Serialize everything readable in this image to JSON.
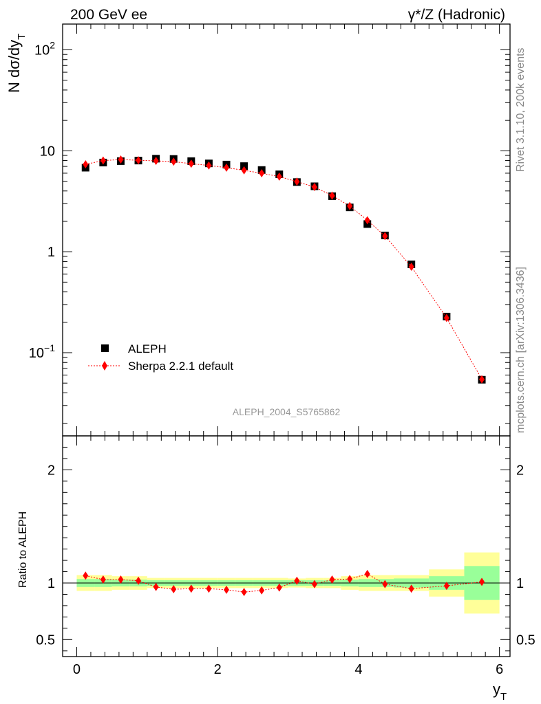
{
  "header": {
    "left": "200 GeV ee",
    "right": "γ*/Z (Hadronic)"
  },
  "side_labels": {
    "rivet": "Rivet 3.1.10,  200k events",
    "mcplots": "mcplots.cern.ch [arXiv:1306.3436]"
  },
  "watermark": "ALEPH_2004_S5765862",
  "colors": {
    "data": "#000000",
    "mc": "#ff0000",
    "band_inner": "#99ff99",
    "band_outer": "#ffff99"
  },
  "chart_data": [
    {
      "type": "scatter",
      "panel": "main",
      "ylabel": "N dσ/dy",
      "ylabel_subscript": "T",
      "yscale": "log",
      "ylim": [
        0.015,
        180
      ],
      "xlim": [
        -0.2,
        6.15
      ],
      "y_tick_labels": [
        {
          "value": 100,
          "base": "10",
          "exp": "2"
        },
        {
          "value": 10,
          "base": "10",
          "exp": ""
        },
        {
          "value": 1,
          "base": "1",
          "exp": ""
        },
        {
          "value": 0.1,
          "base": "10",
          "exp": "−1"
        }
      ],
      "legend": {
        "placement": "lower-left",
        "entries": [
          "ALEPH",
          "Sherpa 2.2.1 default"
        ]
      },
      "series": [
        {
          "name": "ALEPH",
          "marker": "square",
          "x": [
            0.125,
            0.375,
            0.625,
            0.875,
            1.125,
            1.375,
            1.625,
            1.875,
            2.125,
            2.375,
            2.625,
            2.875,
            3.125,
            3.375,
            3.625,
            3.875,
            4.125,
            4.375,
            4.75,
            5.25,
            5.75
          ],
          "values": [
            6.8,
            7.65,
            7.9,
            8.0,
            8.35,
            8.3,
            7.9,
            7.5,
            7.3,
            7.05,
            6.45,
            5.85,
            4.9,
            4.45,
            3.55,
            2.75,
            1.88,
            1.45,
            0.75,
            0.228,
            0.054
          ]
        },
        {
          "name": "Sherpa 2.2.1 default",
          "marker": "diamond",
          "x": [
            0.125,
            0.375,
            0.625,
            0.875,
            1.125,
            1.375,
            1.625,
            1.875,
            2.125,
            2.375,
            2.625,
            2.875,
            3.125,
            3.375,
            3.625,
            3.875,
            4.125,
            4.375,
            4.75,
            5.25,
            5.75
          ],
          "values": [
            7.35,
            8.0,
            8.2,
            8.05,
            7.95,
            7.8,
            7.45,
            7.15,
            6.8,
            6.4,
            5.99,
            5.55,
            4.95,
            4.38,
            3.6,
            2.84,
            2.05,
            1.43,
            0.71,
            0.221,
            0.0545
          ]
        }
      ]
    },
    {
      "type": "line",
      "panel": "ratio",
      "xlabel": "y",
      "xlabel_subscript": "T",
      "ylabel": "Ratio to ALEPH",
      "ylim": [
        0.35,
        2.3
      ],
      "xlim": [
        -0.2,
        6.15
      ],
      "x_ticks": [
        0,
        2,
        4,
        6
      ],
      "x_tick_labels": [
        "0",
        "2",
        "4",
        "6"
      ],
      "y_ticks": [
        0.5,
        1,
        2
      ],
      "y_tick_labels": [
        "0.5",
        "1",
        "2"
      ],
      "bands": {
        "bins": [
          [
            0,
            0.25
          ],
          [
            0.25,
            0.5
          ],
          [
            0.5,
            0.75
          ],
          [
            0.75,
            1.0
          ],
          [
            1.0,
            1.25
          ],
          [
            1.25,
            1.5
          ],
          [
            1.5,
            1.75
          ],
          [
            1.75,
            2.0
          ],
          [
            2.0,
            2.25
          ],
          [
            2.25,
            2.5
          ],
          [
            2.5,
            2.75
          ],
          [
            2.75,
            3.0
          ],
          [
            3.0,
            3.25
          ],
          [
            3.25,
            3.5
          ],
          [
            3.5,
            3.75
          ],
          [
            3.75,
            4.0
          ],
          [
            4.0,
            4.25
          ],
          [
            4.25,
            4.5
          ],
          [
            4.5,
            5.0
          ],
          [
            5.0,
            5.5
          ],
          [
            5.5,
            6.0
          ]
        ],
        "stat_half": [
          0.035,
          0.035,
          0.03,
          0.03,
          0.025,
          0.025,
          0.025,
          0.025,
          0.025,
          0.025,
          0.025,
          0.025,
          0.025,
          0.025,
          0.025,
          0.03,
          0.035,
          0.035,
          0.04,
          0.06,
          0.15
        ],
        "total_half": [
          0.07,
          0.07,
          0.06,
          0.06,
          0.045,
          0.045,
          0.045,
          0.045,
          0.045,
          0.045,
          0.045,
          0.045,
          0.04,
          0.045,
          0.045,
          0.06,
          0.07,
          0.07,
          0.07,
          0.12,
          0.27
        ]
      },
      "series": [
        {
          "name": "Sherpa 2.2.1 default",
          "x": [
            0.125,
            0.375,
            0.625,
            0.875,
            1.125,
            1.375,
            1.625,
            1.875,
            2.125,
            2.375,
            2.625,
            2.875,
            3.125,
            3.375,
            3.625,
            3.875,
            4.125,
            4.375,
            4.75,
            5.25,
            5.75
          ],
          "values": [
            1.065,
            1.03,
            1.03,
            1.02,
            0.965,
            0.945,
            0.95,
            0.95,
            0.94,
            0.92,
            0.935,
            0.96,
            1.02,
            0.99,
            1.03,
            1.035,
            1.08,
            0.99,
            0.95,
            0.975,
            1.01
          ]
        }
      ]
    }
  ]
}
